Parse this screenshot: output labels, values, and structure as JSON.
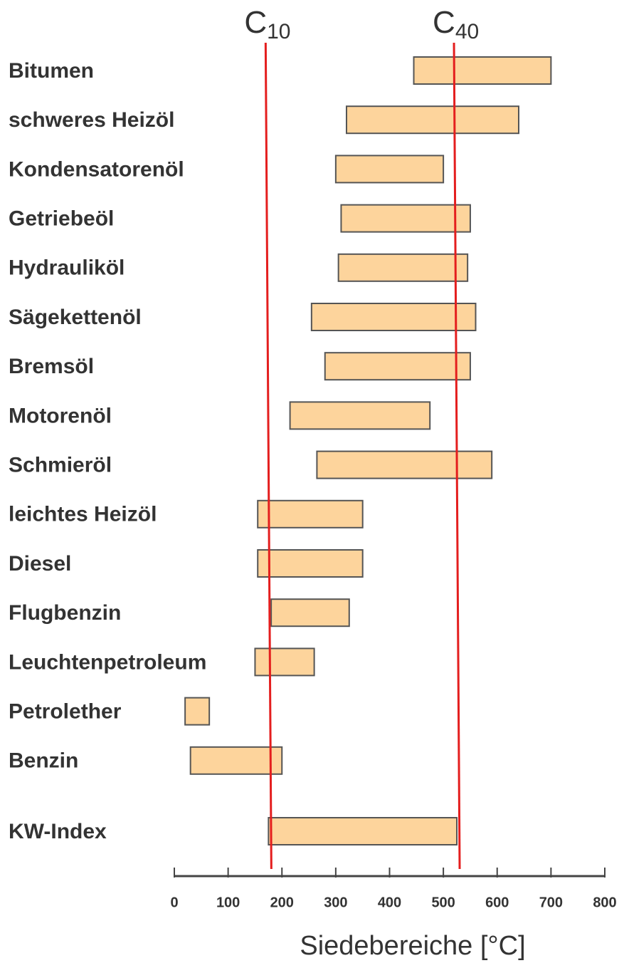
{
  "chart_data": {
    "type": "range_bar",
    "categories": [
      "Bitumen",
      "schweres Heizöl",
      "Kondensatorenöl",
      "Getriebeöl",
      "Hydrauliköl",
      "Sägekettenöl",
      "Bremsöl",
      "Motorenöl",
      "Schmieröl",
      "leichtes Heizöl",
      "Diesel",
      "Flugbenzin",
      "Leuchtenpetroleum",
      "Petrolether",
      "Benzin",
      "KW-Index"
    ],
    "values": [
      [
        445,
        700
      ],
      [
        320,
        640
      ],
      [
        300,
        500
      ],
      [
        310,
        550
      ],
      [
        305,
        545
      ],
      [
        255,
        560
      ],
      [
        280,
        550
      ],
      [
        215,
        475
      ],
      [
        265,
        590
      ],
      [
        155,
        350
      ],
      [
        155,
        350
      ],
      [
        180,
        325
      ],
      [
        150,
        260
      ],
      [
        20,
        65
      ],
      [
        30,
        200
      ],
      [
        175,
        525
      ]
    ],
    "color": "#fdd49c",
    "edge_color": "#555555",
    "xlim": [
      0,
      800
    ],
    "xticks": [
      0,
      100,
      200,
      300,
      400,
      500,
      600,
      700,
      800
    ],
    "xlabel": "Siedebereiche  [°C]",
    "reference_lines": [
      {
        "label": "C",
        "subscript": "10",
        "value": 175,
        "color": "#e41e1e"
      },
      {
        "label": "C",
        "subscript": "40",
        "value": 525,
        "color": "#e41e1e"
      }
    ]
  }
}
